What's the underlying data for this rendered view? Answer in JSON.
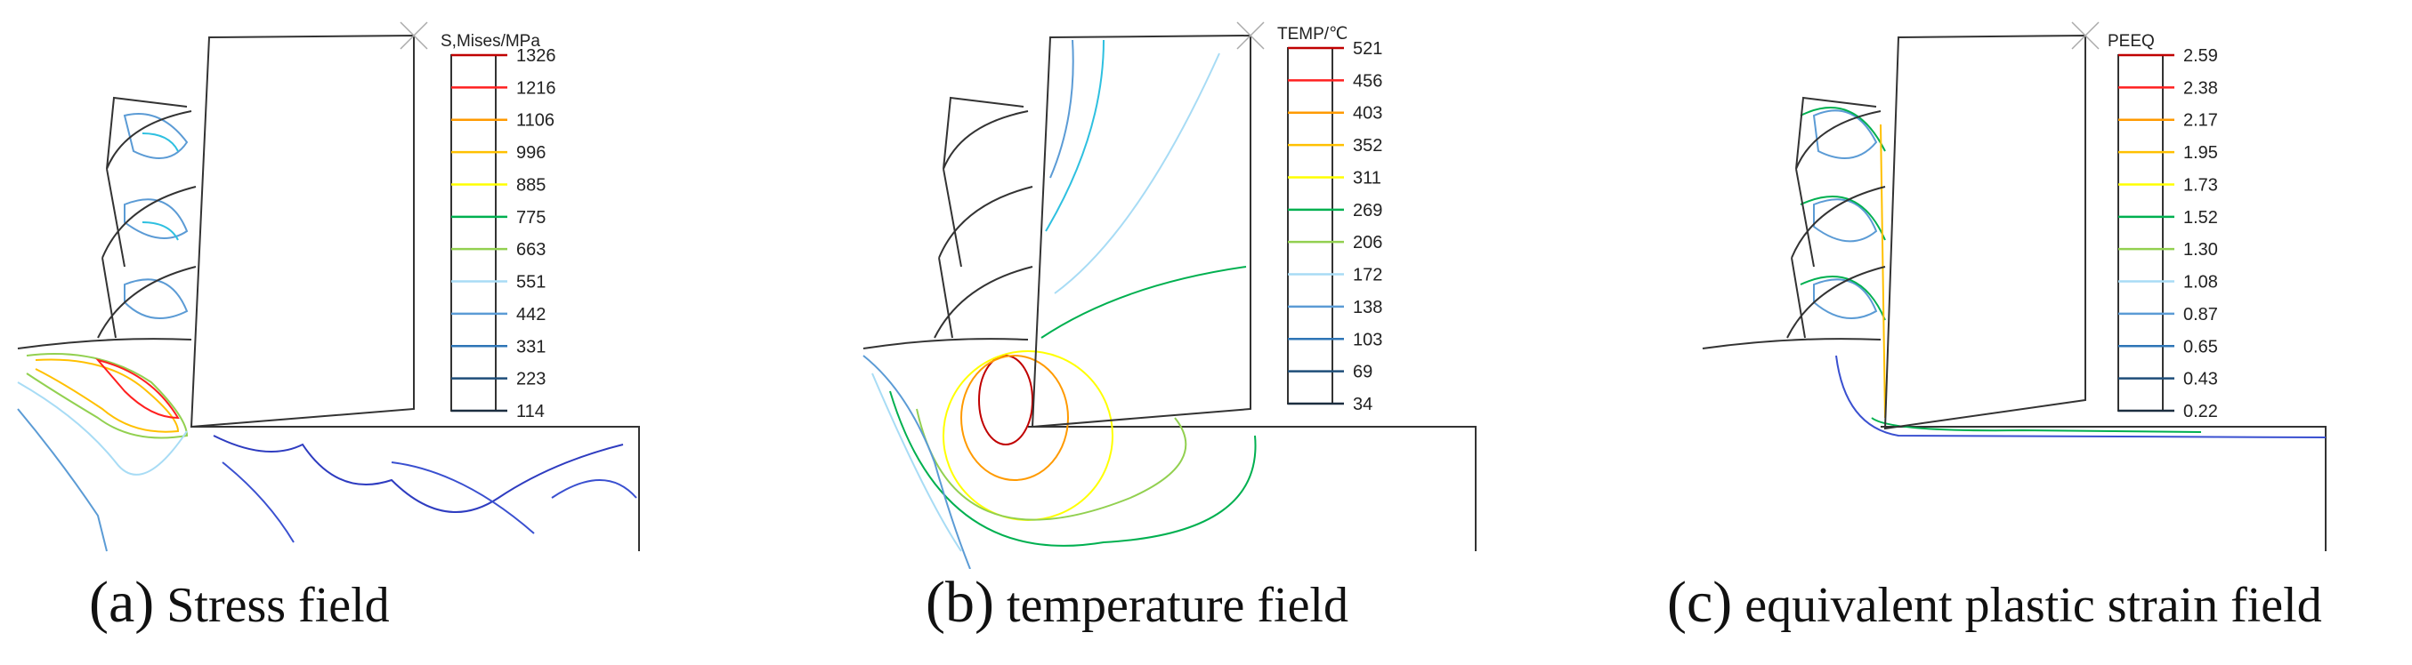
{
  "level_colors": [
    "#c00000",
    "#ff2020",
    "#ff9a00",
    "#ffc000",
    "#ffff00",
    "#00b050",
    "#92d050",
    "#a8dcf5",
    "#5b9bd5",
    "#2e75b6",
    "#1f4e79",
    "#1c2e40"
  ],
  "panels": [
    {
      "caption_tag": "(a)",
      "caption_text": "Stress field",
      "legend": {
        "title": "S,Mises/MPa",
        "values": [
          "1326",
          "1216",
          "1106",
          "996",
          "885",
          "775",
          "663",
          "551",
          "442",
          "331",
          "223",
          "114"
        ]
      }
    },
    {
      "caption_tag": "(b)",
      "caption_text": "temperature field",
      "legend": {
        "title": "TEMP/℃",
        "values": [
          "521",
          "456",
          "403",
          "352",
          "311",
          "269",
          "206",
          "172",
          "138",
          "103",
          "69",
          "34"
        ]
      }
    },
    {
      "caption_tag": "(c)",
      "caption_text": "equivalent plastic strain field",
      "legend": {
        "title": "PEEQ",
        "values": [
          "2.59",
          "2.38",
          "2.17",
          "1.95",
          "1.73",
          "1.52",
          "1.30",
          "1.08",
          "0.87",
          "0.65",
          "0.43",
          "0.22"
        ]
      }
    }
  ]
}
